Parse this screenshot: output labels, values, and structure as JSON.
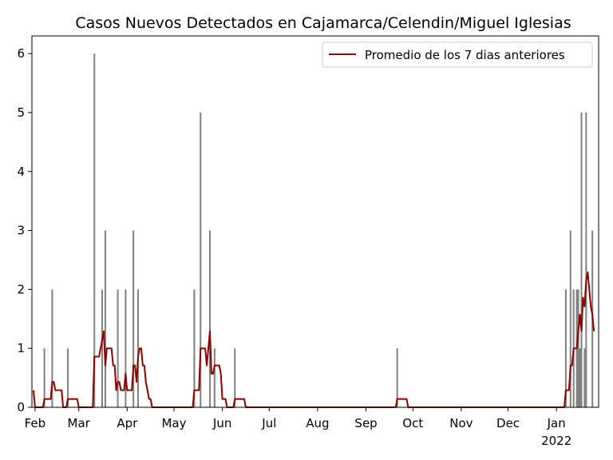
{
  "chart_data": {
    "type": "bar",
    "title": "Casos Nuevos Detectados en Cajamarca/Celendin/Miguel Iglesias",
    "xlabel": "",
    "ylabel": "",
    "ylim": [
      0,
      6.3
    ],
    "grid": false,
    "legend_position": "top-right",
    "x_range": [
      "2021-01-30",
      "2022-01-28"
    ],
    "x_ticks": [
      {
        "date": "2021-02-01",
        "label": "Feb",
        "sublabel": ""
      },
      {
        "date": "2021-03-01",
        "label": "Mar",
        "sublabel": ""
      },
      {
        "date": "2021-04-01",
        "label": "Apr",
        "sublabel": ""
      },
      {
        "date": "2021-05-01",
        "label": "May",
        "sublabel": ""
      },
      {
        "date": "2021-06-01",
        "label": "Jun",
        "sublabel": ""
      },
      {
        "date": "2021-07-01",
        "label": "Jul",
        "sublabel": ""
      },
      {
        "date": "2021-08-01",
        "label": "Aug",
        "sublabel": ""
      },
      {
        "date": "2021-09-01",
        "label": "Sep",
        "sublabel": ""
      },
      {
        "date": "2021-10-01",
        "label": "Oct",
        "sublabel": ""
      },
      {
        "date": "2021-11-01",
        "label": "Nov",
        "sublabel": ""
      },
      {
        "date": "2021-12-01",
        "label": "Dec",
        "sublabel": ""
      },
      {
        "date": "2022-01-01",
        "label": "Jan",
        "sublabel": "2022"
      }
    ],
    "y_ticks": [
      0,
      1,
      2,
      3,
      4,
      5,
      6
    ],
    "bars_color": "#808080",
    "line_color": "#8b0000",
    "bars": [
      {
        "date": "2021-02-07",
        "value": 1
      },
      {
        "date": "2021-02-12",
        "value": 2
      },
      {
        "date": "2021-02-22",
        "value": 1
      },
      {
        "date": "2021-03-11",
        "value": 6
      },
      {
        "date": "2021-03-16",
        "value": 2
      },
      {
        "date": "2021-03-18",
        "value": 3
      },
      {
        "date": "2021-03-26",
        "value": 2
      },
      {
        "date": "2021-03-31",
        "value": 2
      },
      {
        "date": "2021-04-05",
        "value": 3
      },
      {
        "date": "2021-04-08",
        "value": 2
      },
      {
        "date": "2021-05-14",
        "value": 2
      },
      {
        "date": "2021-05-18",
        "value": 5
      },
      {
        "date": "2021-05-24",
        "value": 3
      },
      {
        "date": "2021-05-27",
        "value": 1
      },
      {
        "date": "2021-06-09",
        "value": 1
      },
      {
        "date": "2021-09-21",
        "value": 1
      },
      {
        "date": "2022-01-07",
        "value": 2
      },
      {
        "date": "2022-01-10",
        "value": 3
      },
      {
        "date": "2022-01-12",
        "value": 2
      },
      {
        "date": "2022-01-14",
        "value": 2
      },
      {
        "date": "2022-01-15",
        "value": 2
      },
      {
        "date": "2022-01-16",
        "value": 1
      },
      {
        "date": "2022-01-17",
        "value": 5
      },
      {
        "date": "2022-01-19",
        "value": 1
      },
      {
        "date": "2022-01-20",
        "value": 5
      },
      {
        "date": "2022-01-24",
        "value": 3
      }
    ],
    "series": [
      {
        "name": "Promedio de los 7 dias anteriores",
        "points": [
          [
            "2021-01-31",
            0.29
          ],
          [
            "2021-02-01",
            0
          ],
          [
            "2021-02-06",
            0
          ],
          [
            "2021-02-07",
            0.14
          ],
          [
            "2021-02-11",
            0.14
          ],
          [
            "2021-02-12",
            0.43
          ],
          [
            "2021-02-13",
            0.43
          ],
          [
            "2021-02-14",
            0.29
          ],
          [
            "2021-02-18",
            0.29
          ],
          [
            "2021-02-19",
            0
          ],
          [
            "2021-02-21",
            0
          ],
          [
            "2021-02-22",
            0.14
          ],
          [
            "2021-02-28",
            0.14
          ],
          [
            "2021-03-01",
            0
          ],
          [
            "2021-03-10",
            0
          ],
          [
            "2021-03-11",
            0.86
          ],
          [
            "2021-03-14",
            0.86
          ],
          [
            "2021-03-16",
            1.14
          ],
          [
            "2021-03-17",
            1.29
          ],
          [
            "2021-03-18",
            0.71
          ],
          [
            "2021-03-19",
            1.0
          ],
          [
            "2021-03-22",
            1.0
          ],
          [
            "2021-03-23",
            0.71
          ],
          [
            "2021-03-24",
            0.71
          ],
          [
            "2021-03-25",
            0.29
          ],
          [
            "2021-03-26",
            0.43
          ],
          [
            "2021-03-27",
            0.43
          ],
          [
            "2021-03-28",
            0.29
          ],
          [
            "2021-03-30",
            0.29
          ],
          [
            "2021-03-31",
            0.57
          ],
          [
            "2021-04-01",
            0.29
          ],
          [
            "2021-04-04",
            0.29
          ],
          [
            "2021-04-05",
            0.71
          ],
          [
            "2021-04-06",
            0.71
          ],
          [
            "2021-04-07",
            0.43
          ],
          [
            "2021-04-08",
            0.86
          ],
          [
            "2021-04-09",
            1.0
          ],
          [
            "2021-04-10",
            1.0
          ],
          [
            "2021-04-11",
            0.71
          ],
          [
            "2021-04-12",
            0.71
          ],
          [
            "2021-04-13",
            0.43
          ],
          [
            "2021-04-14",
            0.29
          ],
          [
            "2021-04-15",
            0.14
          ],
          [
            "2021-04-16",
            0.14
          ],
          [
            "2021-04-17",
            0
          ],
          [
            "2021-05-13",
            0
          ],
          [
            "2021-05-14",
            0.29
          ],
          [
            "2021-05-17",
            0.29
          ],
          [
            "2021-05-18",
            1.0
          ],
          [
            "2021-05-21",
            1.0
          ],
          [
            "2021-05-22",
            0.71
          ],
          [
            "2021-05-23",
            1.0
          ],
          [
            "2021-05-24",
            1.29
          ],
          [
            "2021-05-25",
            0.57
          ],
          [
            "2021-05-26",
            0.57
          ],
          [
            "2021-05-27",
            0.71
          ],
          [
            "2021-05-30",
            0.71
          ],
          [
            "2021-05-31",
            0.57
          ],
          [
            "2021-06-01",
            0.14
          ],
          [
            "2021-06-03",
            0.14
          ],
          [
            "2021-06-04",
            0
          ],
          [
            "2021-06-08",
            0
          ],
          [
            "2021-06-09",
            0.14
          ],
          [
            "2021-06-15",
            0.14
          ],
          [
            "2021-06-16",
            0
          ],
          [
            "2021-09-20",
            0
          ],
          [
            "2021-09-21",
            0.14
          ],
          [
            "2021-09-27",
            0.14
          ],
          [
            "2021-09-28",
            0
          ],
          [
            "2022-01-06",
            0
          ],
          [
            "2022-01-07",
            0.29
          ],
          [
            "2022-01-09",
            0.29
          ],
          [
            "2022-01-10",
            0.71
          ],
          [
            "2022-01-11",
            0.71
          ],
          [
            "2022-01-12",
            1.0
          ],
          [
            "2022-01-14",
            1.0
          ],
          [
            "2022-01-15",
            1.29
          ],
          [
            "2022-01-16",
            1.57
          ],
          [
            "2022-01-17",
            1.29
          ],
          [
            "2022-01-18",
            1.86
          ],
          [
            "2022-01-19",
            1.71
          ],
          [
            "2022-01-20",
            2.14
          ],
          [
            "2022-01-21",
            2.29
          ],
          [
            "2022-01-22",
            2.0
          ],
          [
            "2022-01-23",
            1.71
          ],
          [
            "2022-01-24",
            1.57
          ],
          [
            "2022-01-25",
            1.29
          ]
        ]
      }
    ]
  }
}
